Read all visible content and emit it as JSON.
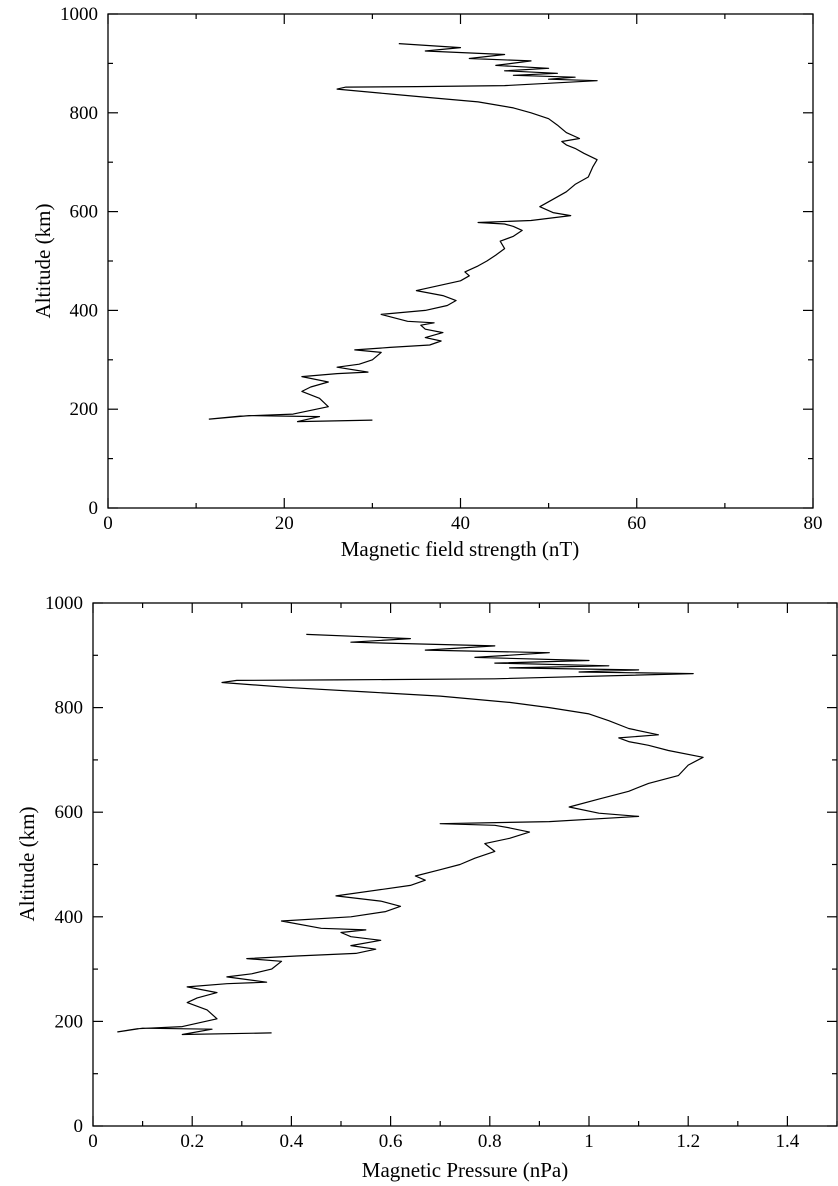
{
  "chart_data": [
    {
      "type": "line",
      "xlabel": "Magnetic field strength (nT)",
      "ylabel": "Altitude (km)",
      "xlim": [
        0,
        80
      ],
      "ylim": [
        0,
        1000
      ],
      "x_ticks": [
        "0",
        "20",
        "40",
        "60",
        "80"
      ],
      "y_ticks": [
        "0",
        "200",
        "400",
        "600",
        "800",
        "1000"
      ],
      "grid": false,
      "legend": "none",
      "series": [
        {
          "x": [
            30.0,
            21.5,
            24.0,
            16.0,
            11.5,
            15.0,
            21.0,
            25.0,
            24.0,
            22.0,
            23.0,
            25.0,
            22.0,
            26.0,
            29.5,
            26.0,
            28.5,
            30.0,
            31.0,
            28.0,
            32.0,
            36.5,
            37.8,
            36.0,
            38.0,
            36.0,
            35.5,
            37.0,
            34.0,
            31.0,
            36.0,
            38.5,
            39.5,
            38.0,
            35.0,
            40.0,
            41.0,
            40.5,
            42.0,
            43.0,
            44.0,
            45.0,
            44.5,
            46.0,
            47.0,
            46.0,
            45.0,
            42.0,
            48.0,
            52.5,
            50.5,
            49.0,
            50.5,
            52.0,
            53.0,
            54.5,
            55.0,
            55.5,
            54.0,
            53.0,
            52.0,
            51.5,
            53.5,
            52.0,
            51.0,
            50.0,
            48.0,
            46.0,
            42.0,
            37.0,
            32.0,
            26.0,
            27.0,
            35.0,
            45.0,
            55.5,
            50.0,
            53.0,
            46.0,
            51.0,
            45.0,
            50.0,
            44.0,
            48.0,
            41.0,
            45.0,
            36.0,
            40.0,
            33.0
          ],
          "y": [
            178,
            175,
            185,
            187,
            180,
            186,
            190,
            205,
            222,
            236,
            245,
            255,
            266,
            272,
            275,
            285,
            291,
            300,
            315,
            320,
            325,
            330,
            338,
            345,
            355,
            362,
            370,
            375,
            378,
            392,
            400,
            410,
            420,
            430,
            440,
            460,
            470,
            478,
            490,
            500,
            512,
            525,
            540,
            550,
            562,
            570,
            575,
            578,
            582,
            592,
            598,
            610,
            625,
            640,
            655,
            670,
            690,
            705,
            718,
            728,
            735,
            742,
            748,
            760,
            775,
            788,
            800,
            810,
            822,
            830,
            838,
            848,
            852,
            853,
            855,
            865,
            868,
            872,
            876,
            880,
            885,
            890,
            896,
            905,
            910,
            918,
            925,
            932,
            940
          ]
        }
      ]
    },
    {
      "type": "line",
      "xlabel": "Magnetic Pressure (nPa)",
      "ylabel": "Altitude (km)",
      "xlim": [
        0,
        1.5
      ],
      "ylim": [
        0,
        1000
      ],
      "x_ticks": [
        "0",
        "0.2",
        "0.4",
        "0.6",
        "0.8",
        "1",
        "1.2",
        "1.4"
      ],
      "y_ticks": [
        "0",
        "200",
        "400",
        "600",
        "800",
        "1000"
      ],
      "grid": false,
      "legend": "none",
      "series": [
        {
          "x": [
            0.36,
            0.18,
            0.24,
            0.1,
            0.05,
            0.09,
            0.18,
            0.25,
            0.23,
            0.19,
            0.21,
            0.25,
            0.19,
            0.27,
            0.35,
            0.27,
            0.32,
            0.36,
            0.38,
            0.31,
            0.41,
            0.53,
            0.57,
            0.52,
            0.58,
            0.52,
            0.5,
            0.55,
            0.46,
            0.38,
            0.52,
            0.59,
            0.62,
            0.58,
            0.49,
            0.64,
            0.67,
            0.65,
            0.7,
            0.74,
            0.77,
            0.81,
            0.79,
            0.84,
            0.88,
            0.84,
            0.81,
            0.7,
            0.92,
            1.1,
            1.02,
            0.96,
            1.02,
            1.08,
            1.12,
            1.18,
            1.2,
            1.23,
            1.16,
            1.12,
            1.08,
            1.06,
            1.14,
            1.08,
            1.04,
            1.0,
            0.92,
            0.84,
            0.7,
            0.55,
            0.4,
            0.26,
            0.29,
            0.49,
            0.81,
            1.21,
            0.98,
            1.1,
            0.84,
            1.04,
            0.81,
            1.0,
            0.77,
            0.92,
            0.67,
            0.81,
            0.52,
            0.64,
            0.43
          ],
          "y": [
            178,
            175,
            185,
            187,
            180,
            186,
            190,
            205,
            222,
            236,
            245,
            255,
            266,
            272,
            275,
            285,
            291,
            300,
            315,
            320,
            325,
            330,
            338,
            345,
            355,
            362,
            370,
            375,
            378,
            392,
            400,
            410,
            420,
            430,
            440,
            460,
            470,
            478,
            490,
            500,
            512,
            525,
            540,
            550,
            562,
            570,
            575,
            578,
            582,
            592,
            598,
            610,
            625,
            640,
            655,
            670,
            690,
            705,
            718,
            728,
            735,
            742,
            748,
            760,
            775,
            788,
            800,
            810,
            822,
            830,
            838,
            848,
            852,
            853,
            855,
            865,
            868,
            872,
            876,
            880,
            885,
            890,
            896,
            905,
            910,
            918,
            925,
            932,
            940
          ]
        }
      ]
    }
  ]
}
